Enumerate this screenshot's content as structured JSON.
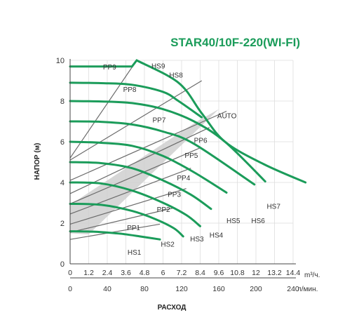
{
  "chart_data": {
    "type": "line",
    "title": "STAR40/10F-220(WI-FI)",
    "xlabel": "РАСХОД",
    "ylabel": "НАПОР (м)",
    "x_unit_top": "m³/ч.",
    "x_unit_bottom": "л/мин.",
    "xlim": [
      0,
      14.4
    ],
    "ylim": [
      0,
      10
    ],
    "grid": true,
    "x_ticks_top": [
      "0",
      "1.2",
      "2.4",
      "3.6",
      "4.8",
      "6",
      "7.2",
      "8.4",
      "9.6",
      "10.8",
      "12",
      "13.2",
      "14.4"
    ],
    "x_ticks_bottom": [
      "0",
      "40",
      "80",
      "120",
      "160",
      "200",
      "240"
    ],
    "y_ticks": [
      "0",
      "2",
      "4",
      "6",
      "8",
      "10"
    ],
    "colors": {
      "curve": "#1b9c5a",
      "pp_line": "#6b6b6b",
      "auto_band": "#cfcfcf",
      "axis": "#444444",
      "title": "#1b9c5a",
      "grid": "#dddddd"
    },
    "series": [
      {
        "name": "HS1",
        "x": [
          0,
          1.5,
          3,
          3.6,
          4.5,
          5.8
        ],
        "y": [
          1.6,
          1.58,
          1.5,
          1.45,
          1.35,
          1.2
        ]
      },
      {
        "name": "HS2",
        "x": [
          0,
          2,
          4,
          5.5,
          6.7,
          7.3
        ],
        "y": [
          2.95,
          2.9,
          2.6,
          2.2,
          1.75,
          1.35
        ]
      },
      {
        "name": "HS3",
        "x": [
          0,
          2,
          4,
          6,
          7.5,
          8.4
        ],
        "y": [
          4.0,
          3.95,
          3.6,
          3.0,
          2.4,
          1.85
        ]
      },
      {
        "name": "HS4",
        "x": [
          0,
          2,
          4,
          6,
          7.8,
          9.1
        ],
        "y": [
          5.0,
          4.95,
          4.7,
          4.1,
          3.4,
          2.7
        ]
      },
      {
        "name": "HS5",
        "x": [
          0,
          2,
          4,
          6,
          8,
          10.1
        ],
        "y": [
          6.0,
          5.95,
          5.8,
          5.3,
          4.5,
          3.5
        ]
      },
      {
        "name": "HS6",
        "x": [
          0,
          2,
          4,
          6,
          8,
          11.9
        ],
        "y": [
          7.0,
          6.98,
          6.85,
          6.5,
          5.9,
          3.9
        ]
      },
      {
        "name": "HS7",
        "x": [
          0,
          2,
          4,
          6,
          8,
          10,
          12.6
        ],
        "y": [
          8.0,
          7.98,
          7.9,
          7.6,
          7.0,
          6.0,
          4.05
        ]
      },
      {
        "name": "HS8",
        "x": [
          0,
          2,
          4,
          6,
          7,
          8.5
        ],
        "y": [
          8.9,
          8.88,
          8.8,
          8.45,
          8.0,
          7.2
        ]
      },
      {
        "name": "HS9",
        "x": [
          0,
          4,
          4.3,
          7,
          8.5,
          10,
          12.5,
          15.2
        ],
        "y": [
          9.7,
          9.7,
          10,
          8.9,
          7.4,
          6.0,
          4.9,
          4.0
        ]
      }
    ],
    "pp_lines": [
      {
        "name": "PP1",
        "x": [
          0,
          5.8
        ],
        "y": [
          1.2,
          1.95
        ]
      },
      {
        "name": "PP2",
        "x": [
          0,
          6.7
        ],
        "y": [
          1.55,
          2.75
        ]
      },
      {
        "name": "PP3",
        "x": [
          0,
          7.5
        ],
        "y": [
          1.95,
          3.7
        ]
      },
      {
        "name": "PP4",
        "x": [
          0,
          7.8
        ],
        "y": [
          2.45,
          4.7
        ]
      },
      {
        "name": "PP5",
        "x": [
          0,
          8.4
        ],
        "y": [
          2.95,
          5.7
        ]
      },
      {
        "name": "PP6",
        "x": [
          0,
          9
        ],
        "y": [
          3.45,
          6.7
        ]
      },
      {
        "name": "PP7",
        "x": [
          0,
          10.1
        ],
        "y": [
          4.1,
          7.5
        ]
      },
      {
        "name": "PP8",
        "x": [
          0,
          8.5
        ],
        "y": [
          5.1,
          9.0
        ]
      },
      {
        "name": "PP9",
        "x": [
          0,
          4.3
        ],
        "y": [
          5.2,
          10
        ]
      }
    ],
    "auto_band": {
      "x": [
        0,
        1.2,
        9.6,
        8.2,
        0
      ],
      "y": [
        1.5,
        1.45,
        7.6,
        7.0,
        2.9
      ]
    },
    "annotations": [
      {
        "text": "AUTO",
        "x": 9.5,
        "y": 7.15,
        "anchor": "start"
      },
      {
        "text": "PP9",
        "x": 2.55,
        "y": 9.55,
        "anchor": "middle"
      },
      {
        "text": "HS9",
        "x": 5.25,
        "y": 9.6,
        "anchor": "start"
      },
      {
        "text": "HS8",
        "x": 6.4,
        "y": 9.15,
        "anchor": "start"
      },
      {
        "text": "PP8",
        "x": 3.85,
        "y": 8.45,
        "anchor": "middle"
      },
      {
        "text": "PP7",
        "x": 5.75,
        "y": 6.95,
        "anchor": "middle"
      },
      {
        "text": "PP6",
        "x": 8.0,
        "y": 5.95,
        "anchor": "start"
      },
      {
        "text": "PP5",
        "x": 7.4,
        "y": 5.2,
        "anchor": "start"
      },
      {
        "text": "PP4",
        "x": 6.9,
        "y": 4.1,
        "anchor": "start"
      },
      {
        "text": "PP3",
        "x": 6.3,
        "y": 3.3,
        "anchor": "start"
      },
      {
        "text": "PP2",
        "x": 5.6,
        "y": 2.55,
        "anchor": "start"
      },
      {
        "text": "PP1",
        "x": 4.1,
        "y": 1.65,
        "anchor": "middle"
      },
      {
        "text": "HS1",
        "x": 4.15,
        "y": 0.45,
        "anchor": "middle"
      },
      {
        "text": "HS2",
        "x": 6.3,
        "y": 0.85,
        "anchor": "middle"
      },
      {
        "text": "HS3",
        "x": 7.75,
        "y": 1.1,
        "anchor": "start"
      },
      {
        "text": "HS4",
        "x": 9.0,
        "y": 1.3,
        "anchor": "start"
      },
      {
        "text": "HS5",
        "x": 10.1,
        "y": 2.0,
        "anchor": "start"
      },
      {
        "text": "HS6",
        "x": 11.7,
        "y": 2.0,
        "anchor": "start"
      },
      {
        "text": "HS7",
        "x": 12.7,
        "y": 2.7,
        "anchor": "start"
      }
    ]
  }
}
